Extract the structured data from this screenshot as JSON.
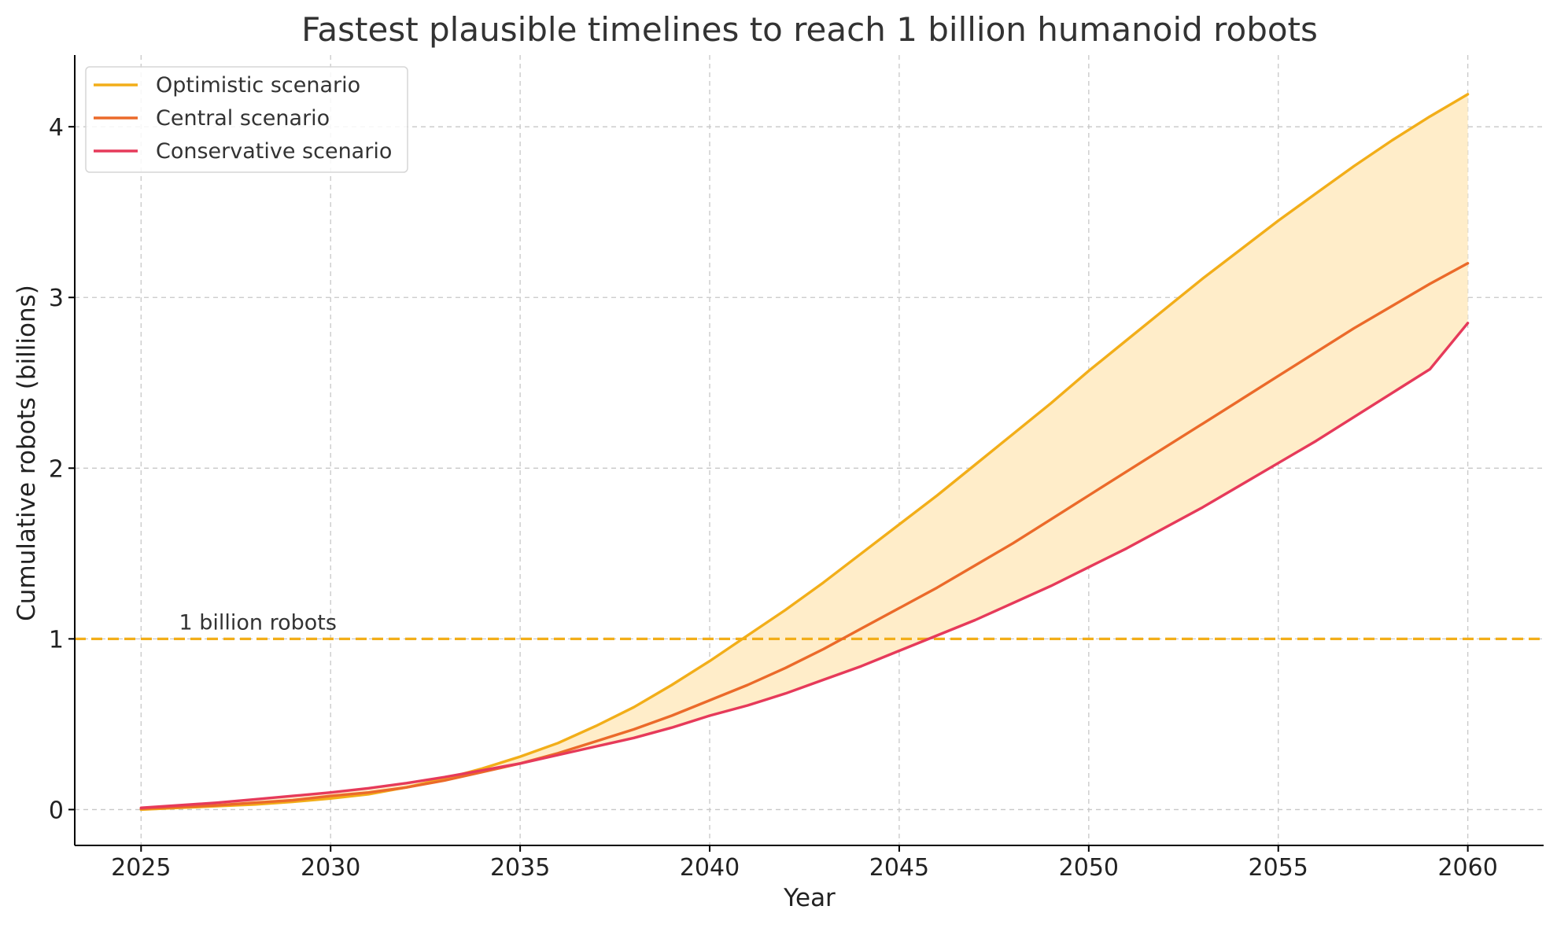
{
  "chart_data": {
    "type": "line",
    "title": "Fastest plausible timelines to reach 1 billion humanoid robots",
    "xlabel": "Year",
    "ylabel": "Cumulative robots (billions)",
    "xlim": [
      2023.25,
      2062.0
    ],
    "ylim": [
      -0.21,
      4.42
    ],
    "xticks": [
      2025,
      2030,
      2035,
      2040,
      2045,
      2050,
      2055,
      2060
    ],
    "yticks": [
      0,
      1,
      2,
      3,
      4
    ],
    "xtick_labels": [
      "2025",
      "2030",
      "2035",
      "2040",
      "2045",
      "2050",
      "2055",
      "2060"
    ],
    "ytick_labels": [
      "0",
      "1",
      "2",
      "3",
      "4"
    ],
    "grid": true,
    "legend_position": "top-left",
    "x": [
      2025,
      2026,
      2027,
      2028,
      2029,
      2030,
      2031,
      2032,
      2033,
      2034,
      2035,
      2036,
      2037,
      2038,
      2039,
      2040,
      2041,
      2042,
      2043,
      2044,
      2045,
      2046,
      2047,
      2048,
      2049,
      2050,
      2051,
      2052,
      2053,
      2054,
      2055,
      2056,
      2057,
      2058,
      2059,
      2060
    ],
    "series": [
      {
        "name": "Optimistic scenario",
        "color": "#f2ae19",
        "values": [
          0.0,
          0.01,
          0.02,
          0.03,
          0.045,
          0.065,
          0.09,
          0.13,
          0.18,
          0.24,
          0.31,
          0.39,
          0.49,
          0.6,
          0.73,
          0.87,
          1.02,
          1.17,
          1.33,
          1.5,
          1.67,
          1.84,
          2.02,
          2.2,
          2.38,
          2.57,
          2.75,
          2.93,
          3.11,
          3.28,
          3.45,
          3.61,
          3.77,
          3.92,
          4.06,
          4.19
        ]
      },
      {
        "name": "Central scenario",
        "color": "#eb6a2a",
        "values": [
          0.005,
          0.015,
          0.025,
          0.04,
          0.055,
          0.08,
          0.1,
          0.13,
          0.17,
          0.22,
          0.27,
          0.33,
          0.4,
          0.47,
          0.55,
          0.64,
          0.73,
          0.83,
          0.94,
          1.06,
          1.18,
          1.3,
          1.43,
          1.56,
          1.7,
          1.84,
          1.98,
          2.12,
          2.26,
          2.4,
          2.54,
          2.68,
          2.82,
          2.95,
          3.08,
          3.2
        ]
      },
      {
        "name": "Conservative scenario",
        "color": "#e63a5a",
        "values": [
          0.01,
          0.025,
          0.04,
          0.06,
          0.08,
          0.1,
          0.125,
          0.155,
          0.19,
          0.23,
          0.27,
          0.32,
          0.37,
          0.42,
          0.48,
          0.55,
          0.61,
          0.68,
          0.76,
          0.84,
          0.93,
          1.02,
          1.11,
          1.21,
          1.31,
          1.42,
          1.53,
          1.65,
          1.77,
          1.9,
          2.03,
          2.16,
          2.3,
          2.44,
          2.58,
          2.85
        ]
      }
    ],
    "band": {
      "fill": "#ffedc9",
      "between": [
        "Conservative scenario",
        "Optimistic scenario"
      ]
    },
    "reference_line": {
      "y": 1,
      "color": "#f2ae19",
      "style": "dashed",
      "label": "1 billion robots"
    }
  }
}
